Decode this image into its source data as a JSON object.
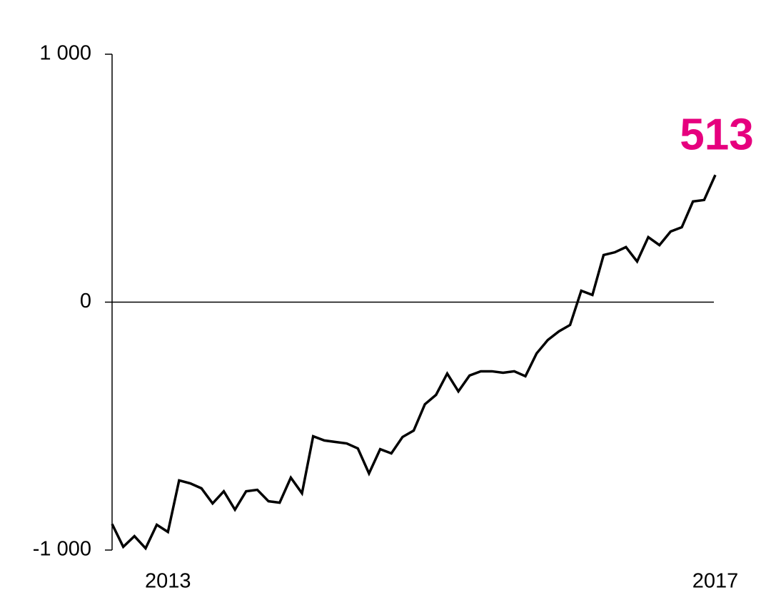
{
  "chart_data": {
    "type": "line",
    "categories": [
      null,
      null,
      null,
      null,
      null,
      "2013",
      null,
      null,
      null,
      null,
      null,
      null,
      null,
      null,
      null,
      null,
      null,
      null,
      null,
      null,
      null,
      null,
      null,
      null,
      null,
      null,
      null,
      null,
      null,
      null,
      null,
      null,
      null,
      null,
      null,
      null,
      null,
      null,
      null,
      null,
      null,
      null,
      null,
      null,
      null,
      null,
      null,
      null,
      null,
      null,
      null,
      null,
      null,
      null,
      "2017"
    ],
    "series": [
      {
        "color": "#000000",
        "values": [
          -895,
          -987,
          -944,
          -993,
          -898,
          -927,
          -719,
          -731,
          -751,
          -812,
          -763,
          -837,
          -763,
          -757,
          -803,
          -809,
          -708,
          -771,
          -541,
          -558,
          -564,
          -570,
          -590,
          -691,
          -593,
          -610,
          -544,
          -518,
          -412,
          -374,
          -288,
          -360,
          -296,
          -279,
          -279,
          -285,
          -279,
          -299,
          -207,
          -153,
          -118,
          -92,
          46,
          29,
          190,
          201,
          222,
          164,
          262,
          230,
          285,
          302,
          406,
          412,
          513
        ],
        "value_labels": [
          null,
          null,
          null,
          null,
          null,
          null,
          null,
          null,
          null,
          null,
          null,
          null,
          null,
          null,
          null,
          null,
          null,
          null,
          null,
          null,
          null,
          null,
          null,
          null,
          null,
          null,
          null,
          null,
          null,
          null,
          null,
          null,
          null,
          null,
          null,
          null,
          null,
          null,
          null,
          null,
          null,
          null,
          null,
          null,
          null,
          null,
          null,
          null,
          null,
          null,
          null,
          null,
          null,
          null,
          "513"
        ],
        "label_color": "#e6007e"
      }
    ],
    "ylim": [
      -1000,
      1000
    ],
    "yticks": [
      {
        "value": -1000,
        "label": "-1 000"
      },
      0,
      {
        "value": 1000,
        "label": "1 000"
      }
    ]
  }
}
